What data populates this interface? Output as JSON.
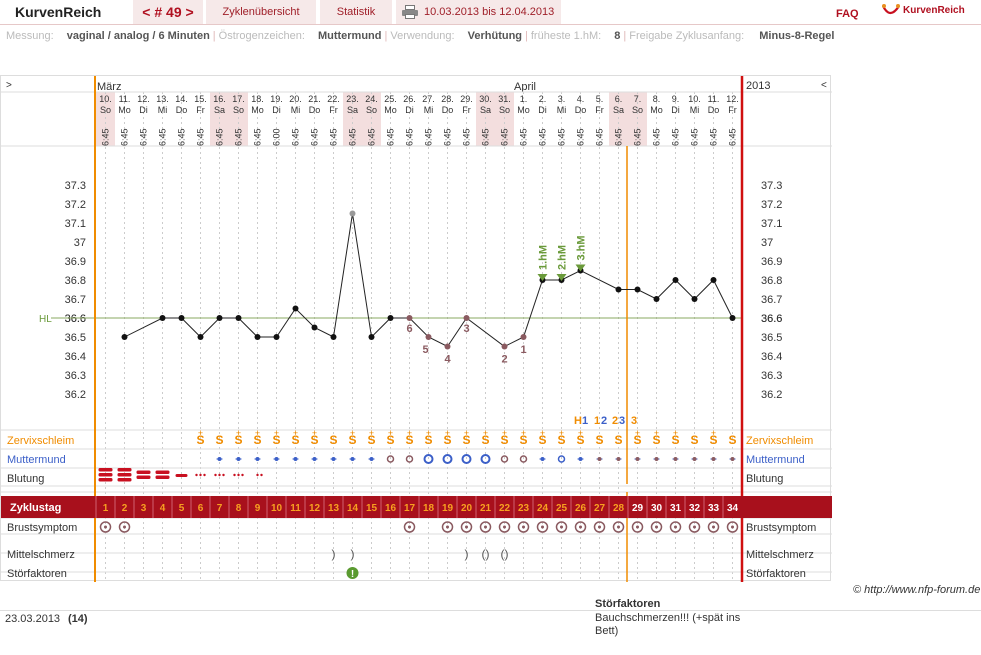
{
  "header": {
    "app_title": "KurvenReich",
    "cycle_nav": "< # 49 >",
    "tab_overview": "Zyklenübersicht",
    "tab_stats": "Statistik",
    "date_range": "10.03.2013 bis 12.04.2013",
    "faq": "FAQ",
    "logo_text": "KurvenReich"
  },
  "meta": {
    "messung_label": "Messung:",
    "messung_value": "vaginal / analog / 6 Minuten",
    "oestro_label": "Östrogenzeichen:",
    "oestro_value": "Muttermund",
    "verw_label": "Verwendung:",
    "verw_value": "Verhütung",
    "frueh_label": "früheste 1.hM:",
    "frueh_value": "8",
    "freigabe_label": "Freigabe Zyklusanfang:",
    "freigabe_value": "Minus-8-Regel"
  },
  "chart": {
    "nav_left": ">",
    "nav_right": "<",
    "year": "2013",
    "month_maerz": "März",
    "month_april": "April",
    "days": [
      {
        "d": "10.",
        "w": "So",
        "t": "6:45"
      },
      {
        "d": "11.",
        "w": "Mo",
        "t": "6:45"
      },
      {
        "d": "12.",
        "w": "Di",
        "t": "6:45"
      },
      {
        "d": "13.",
        "w": "Mi",
        "t": "6:45"
      },
      {
        "d": "14.",
        "w": "Do",
        "t": "6:45"
      },
      {
        "d": "15.",
        "w": "Fr",
        "t": "6:45"
      },
      {
        "d": "16.",
        "w": "Sa",
        "t": "6:45"
      },
      {
        "d": "17.",
        "w": "So",
        "t": "6:45"
      },
      {
        "d": "18.",
        "w": "Mo",
        "t": "6:45"
      },
      {
        "d": "19.",
        "w": "Di",
        "t": "6:00"
      },
      {
        "d": "20.",
        "w": "Mi",
        "t": "6:45"
      },
      {
        "d": "21.",
        "w": "Do",
        "t": "6:45"
      },
      {
        "d": "22.",
        "w": "Fr",
        "t": "6:45"
      },
      {
        "d": "23.",
        "w": "Sa",
        "t": "6:45"
      },
      {
        "d": "24.",
        "w": "So",
        "t": "6:45"
      },
      {
        "d": "25.",
        "w": "Mo",
        "t": "6:45"
      },
      {
        "d": "26.",
        "w": "Di",
        "t": "6:45"
      },
      {
        "d": "27.",
        "w": "Mi",
        "t": "6:45"
      },
      {
        "d": "28.",
        "w": "Do",
        "t": "6:45"
      },
      {
        "d": "29.",
        "w": "Fr",
        "t": "6:45"
      },
      {
        "d": "30.",
        "w": "Sa",
        "t": "6:45"
      },
      {
        "d": "31.",
        "w": "So",
        "t": "6:45"
      },
      {
        "d": "1.",
        "w": "Mo",
        "t": "6:45"
      },
      {
        "d": "2.",
        "w": "Di",
        "t": "6:45"
      },
      {
        "d": "3.",
        "w": "Mi",
        "t": "6:45"
      },
      {
        "d": "4.",
        "w": "Do",
        "t": "6:45"
      },
      {
        "d": "5.",
        "w": "Fr",
        "t": "6:45"
      },
      {
        "d": "6.",
        "w": "Sa",
        "t": "6:45"
      },
      {
        "d": "7.",
        "w": "So",
        "t": "6:45"
      },
      {
        "d": "8.",
        "w": "Mo",
        "t": "6:45"
      },
      {
        "d": "9.",
        "w": "Di",
        "t": "6:45"
      },
      {
        "d": "10.",
        "w": "Mi",
        "t": "6:45"
      },
      {
        "d": "11.",
        "w": "Do",
        "t": "6:45"
      },
      {
        "d": "12.",
        "w": "Fr",
        "t": "6:45"
      }
    ],
    "yticks": [
      "37.3",
      "37.2",
      "37.1",
      "37",
      "36.9",
      "36.8",
      "36.7",
      "36.6",
      "36.5",
      "36.4",
      "36.3",
      "36.2"
    ],
    "hl_label": "HL",
    "temps": [
      null,
      36.5,
      null,
      36.6,
      36.6,
      36.5,
      36.6,
      36.6,
      36.5,
      36.5,
      36.65,
      36.55,
      36.5,
      37.15,
      36.5,
      36.6,
      36.6,
      36.5,
      36.45,
      36.6,
      null,
      36.45,
      36.5,
      36.8,
      36.8,
      36.85,
      null,
      36.75,
      36.75,
      36.7,
      36.8,
      36.7,
      36.8,
      36.6
    ],
    "low_labels": [
      {
        "i": 16,
        "t": "6"
      },
      {
        "i": 17,
        "t": "5"
      },
      {
        "i": 18,
        "t": "4"
      },
      {
        "i": 19,
        "t": "3"
      },
      {
        "i": 21,
        "t": "2"
      },
      {
        "i": 22,
        "t": "1"
      }
    ],
    "hm_labels": [
      {
        "i": 23,
        "t": "1.hM"
      },
      {
        "i": 24,
        "t": "2.hM"
      },
      {
        "i": 25,
        "t": "3.hM"
      }
    ],
    "eval_marks": {
      "h": "H",
      "one": "1",
      "one_b": "1",
      "two": "2",
      "two_b": "2",
      "three": "3",
      "three_b": "3"
    },
    "labels": {
      "zervix": "Zervixschleim",
      "muttermund": "Muttermund",
      "blutung": "Blutung",
      "zyklustag": "Zyklustag",
      "brust": "Brustsymptom",
      "mittel": "Mittelschmerz",
      "stoer": "Störfaktoren"
    },
    "cycle_days": [
      "1",
      "2",
      "3",
      "4",
      "5",
      "6",
      "7",
      "8",
      "9",
      "10",
      "11",
      "12",
      "13",
      "14",
      "15",
      "16",
      "17",
      "18",
      "19",
      "20",
      "21",
      "22",
      "23",
      "24",
      "25",
      "26",
      "27",
      "28",
      "29",
      "30",
      "31",
      "32",
      "33",
      "34"
    ]
  },
  "copyright": "© http://www.nfp-forum.de",
  "footer": {
    "date": "23.03.2013",
    "day": "(14)",
    "stoer_title": "Störfaktoren",
    "stoer_text": "Bauchschmerzen!!! (+spät ins Bett)"
  },
  "colors": {
    "accent": "#a8101c",
    "orange": "#f08c00",
    "green": "#6a9a3a",
    "mm_blue": "#3b5fc8"
  }
}
